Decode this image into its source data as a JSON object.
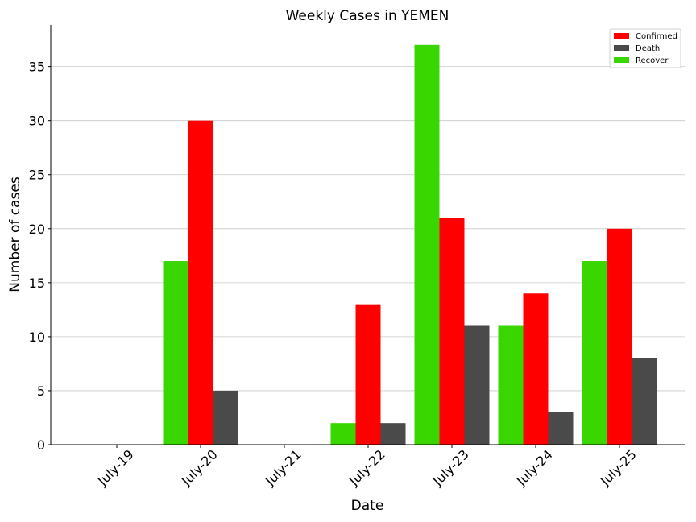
{
  "chart_data": {
    "type": "bar",
    "title": "Weekly Cases in YEMEN",
    "xlabel": "Date",
    "ylabel": "Number of cases",
    "categories": [
      "July-19",
      "July-20",
      "July-21",
      "July-22",
      "July-23",
      "July-24",
      "July-25"
    ],
    "series": [
      {
        "name": "Recover",
        "color": "#3ad600",
        "values": [
          0,
          17,
          0,
          2,
          37,
          11,
          17
        ]
      },
      {
        "name": "Confirmed",
        "color": "#ff0000",
        "values": [
          0,
          30,
          0,
          13,
          21,
          14,
          20
        ]
      },
      {
        "name": "Death",
        "color": "#4a4a4a",
        "values": [
          0,
          5,
          0,
          2,
          11,
          3,
          8
        ]
      }
    ],
    "legend_order": [
      "Confirmed",
      "Death",
      "Recover"
    ],
    "legend_position": "top-right",
    "ylim": [
      0,
      38.85
    ],
    "yticks": [
      0,
      5,
      10,
      15,
      20,
      25,
      30,
      35
    ],
    "grid": "horizontal"
  }
}
